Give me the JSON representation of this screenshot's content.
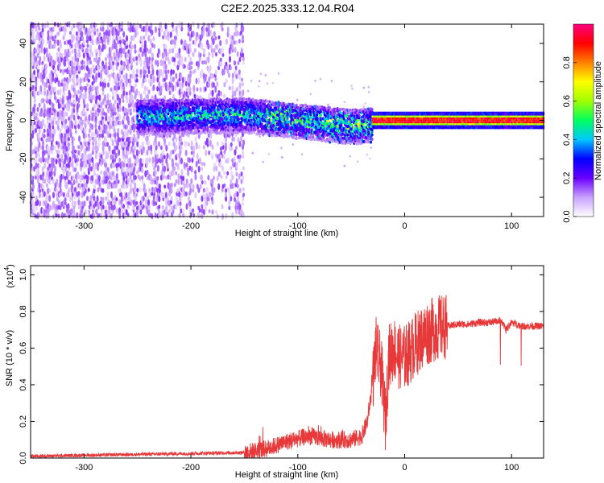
{
  "title": "C2E2.2025.333.12.04.R04",
  "chart_data": [
    {
      "type": "heatmap",
      "xlabel": "Height of straight line (km)",
      "ylabel": "Frequency (Hz)",
      "xlim": [
        -350,
        130
      ],
      "ylim": [
        -50,
        50
      ],
      "xticks": [
        -300,
        -200,
        -100,
        0,
        100
      ],
      "xtick_labels": [
        "-300",
        "-200",
        "-100",
        "0",
        "100"
      ],
      "yticks": [
        -40,
        -20,
        0,
        20,
        40
      ],
      "ytick_labels": [
        "-40",
        "-20",
        "0",
        "20",
        "40"
      ],
      "colorbar": {
        "label": "Normalized spectral amplitude",
        "range": [
          0,
          1
        ],
        "ticks": [
          0.0,
          0.2,
          0.4,
          0.6,
          0.8
        ],
        "tick_labels": [
          "0.0",
          "0.2",
          "0.4",
          "0.6",
          "0.8"
        ],
        "colors": [
          "#ffffff",
          "#c9a0ff",
          "#6a00ff",
          "#0000ff",
          "#00c8ff",
          "#00ff60",
          "#a0ff00",
          "#ffff00",
          "#ff8000",
          "#ff0000",
          "#ff0080"
        ]
      },
      "regions": [
        {
          "x_range": [
            -350,
            -150
          ],
          "freq_range": [
            -50,
            50
          ],
          "amplitude": "0.05-0.15",
          "description": "noise"
        },
        {
          "x_range": [
            -250,
            -30
          ],
          "center_freq": [
            [
              -250,
              2
            ],
            [
              -150,
              3
            ],
            [
              -100,
              0
            ],
            [
              -50,
              -3
            ],
            [
              -30,
              -2
            ]
          ],
          "half_width": 6,
          "amplitude": "0.2-0.5"
        },
        {
          "x_range": [
            -30,
            130
          ],
          "center_freq": 0,
          "half_width": 3,
          "amplitude": "0.6-1.0"
        }
      ]
    },
    {
      "type": "line",
      "xlabel": "Height of straight line (km)",
      "ylabel": "SNR (10 * v/v)",
      "y_multiplier": "(x10",
      "y_multiplier_exp": "4",
      "xlim": [
        -350,
        130
      ],
      "ylim": [
        0,
        1.05
      ],
      "xticks": [
        -300,
        -200,
        -100,
        0,
        100
      ],
      "xtick_labels": [
        "-300",
        "-200",
        "-100",
        "0",
        "100"
      ],
      "yticks": [
        0.0,
        0.2,
        0.4,
        0.6,
        0.8,
        1.0
      ],
      "ytick_labels": [
        "0.0",
        "0.2",
        "0.4",
        "0.6",
        "0.8",
        "1.0"
      ],
      "color": "#e8393a",
      "series": [
        {
          "x": [
            -350,
            -300,
            -250,
            -200,
            -150,
            -130,
            -110,
            -90,
            -70,
            -50,
            -40,
            -35,
            -30,
            -27,
            -25,
            -22,
            -20,
            -18,
            -15,
            -10,
            -5,
            0,
            5,
            10,
            20,
            30,
            40,
            50,
            60,
            70,
            80,
            90,
            95,
            100,
            105,
            110,
            120,
            130
          ],
          "y": [
            0.01,
            0.015,
            0.02,
            0.025,
            0.03,
            0.05,
            0.09,
            0.12,
            0.1,
            0.1,
            0.12,
            0.2,
            0.4,
            0.6,
            0.55,
            0.5,
            0.35,
            0.2,
            0.55,
            0.6,
            0.55,
            0.55,
            0.58,
            0.62,
            0.68,
            0.71,
            0.72,
            0.73,
            0.73,
            0.74,
            0.74,
            0.75,
            0.7,
            0.74,
            0.73,
            0.72,
            0.72,
            0.72
          ]
        }
      ]
    }
  ]
}
